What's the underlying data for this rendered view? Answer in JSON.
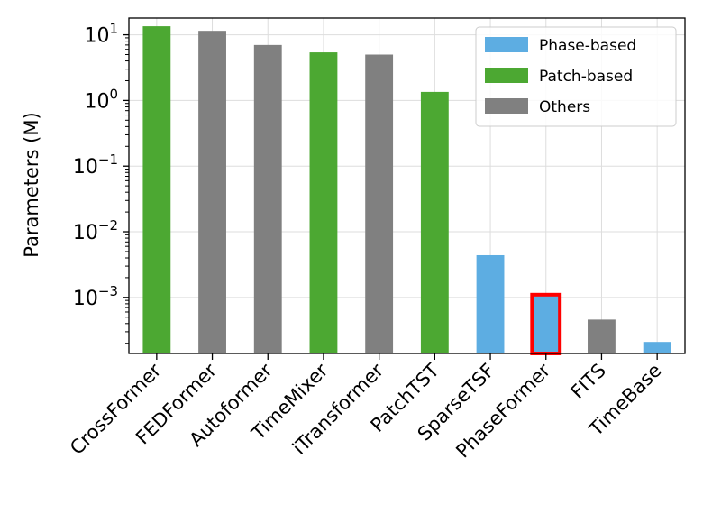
{
  "chart_data": {
    "type": "bar",
    "yscale": "log",
    "ylabel": "Parameters (M)",
    "ylim": [
      0.00014,
      18
    ],
    "grid": true,
    "highlight": "PhaseFormer",
    "categories": [
      "CrossFormer",
      "FEDFormer",
      "Autoformer",
      "TimeMixer",
      "iTransformer",
      "PatchTST",
      "SparseTSF",
      "PhaseFormer",
      "FITS",
      "TimeBase"
    ],
    "values": [
      13.5,
      11.5,
      7.0,
      5.4,
      5.0,
      1.35,
      0.0044,
      0.0011,
      0.00046,
      0.00021
    ],
    "groups": [
      "Patch-based",
      "Others",
      "Others",
      "Patch-based",
      "Others",
      "Patch-based",
      "Phase-based",
      "Phase-based",
      "Others",
      "Phase-based"
    ],
    "yticks": [
      {
        "value": 10,
        "base": "10",
        "exp": "1"
      },
      {
        "value": 1,
        "base": "10",
        "exp": "0"
      },
      {
        "value": 0.1,
        "base": "10",
        "exp": "−1"
      },
      {
        "value": 0.01,
        "base": "10",
        "exp": "−2"
      },
      {
        "value": 0.001,
        "base": "10",
        "exp": "−3"
      }
    ],
    "legend": {
      "position": "top-right",
      "entries": [
        {
          "label": "Phase-based",
          "color": "#5dade2"
        },
        {
          "label": "Patch-based",
          "color": "#4ca832"
        },
        {
          "label": "Others",
          "color": "#808080"
        }
      ]
    },
    "colors": {
      "Phase-based": "#5dade2",
      "Patch-based": "#4ca832",
      "Others": "#808080",
      "highlight": "#ff0000"
    }
  }
}
